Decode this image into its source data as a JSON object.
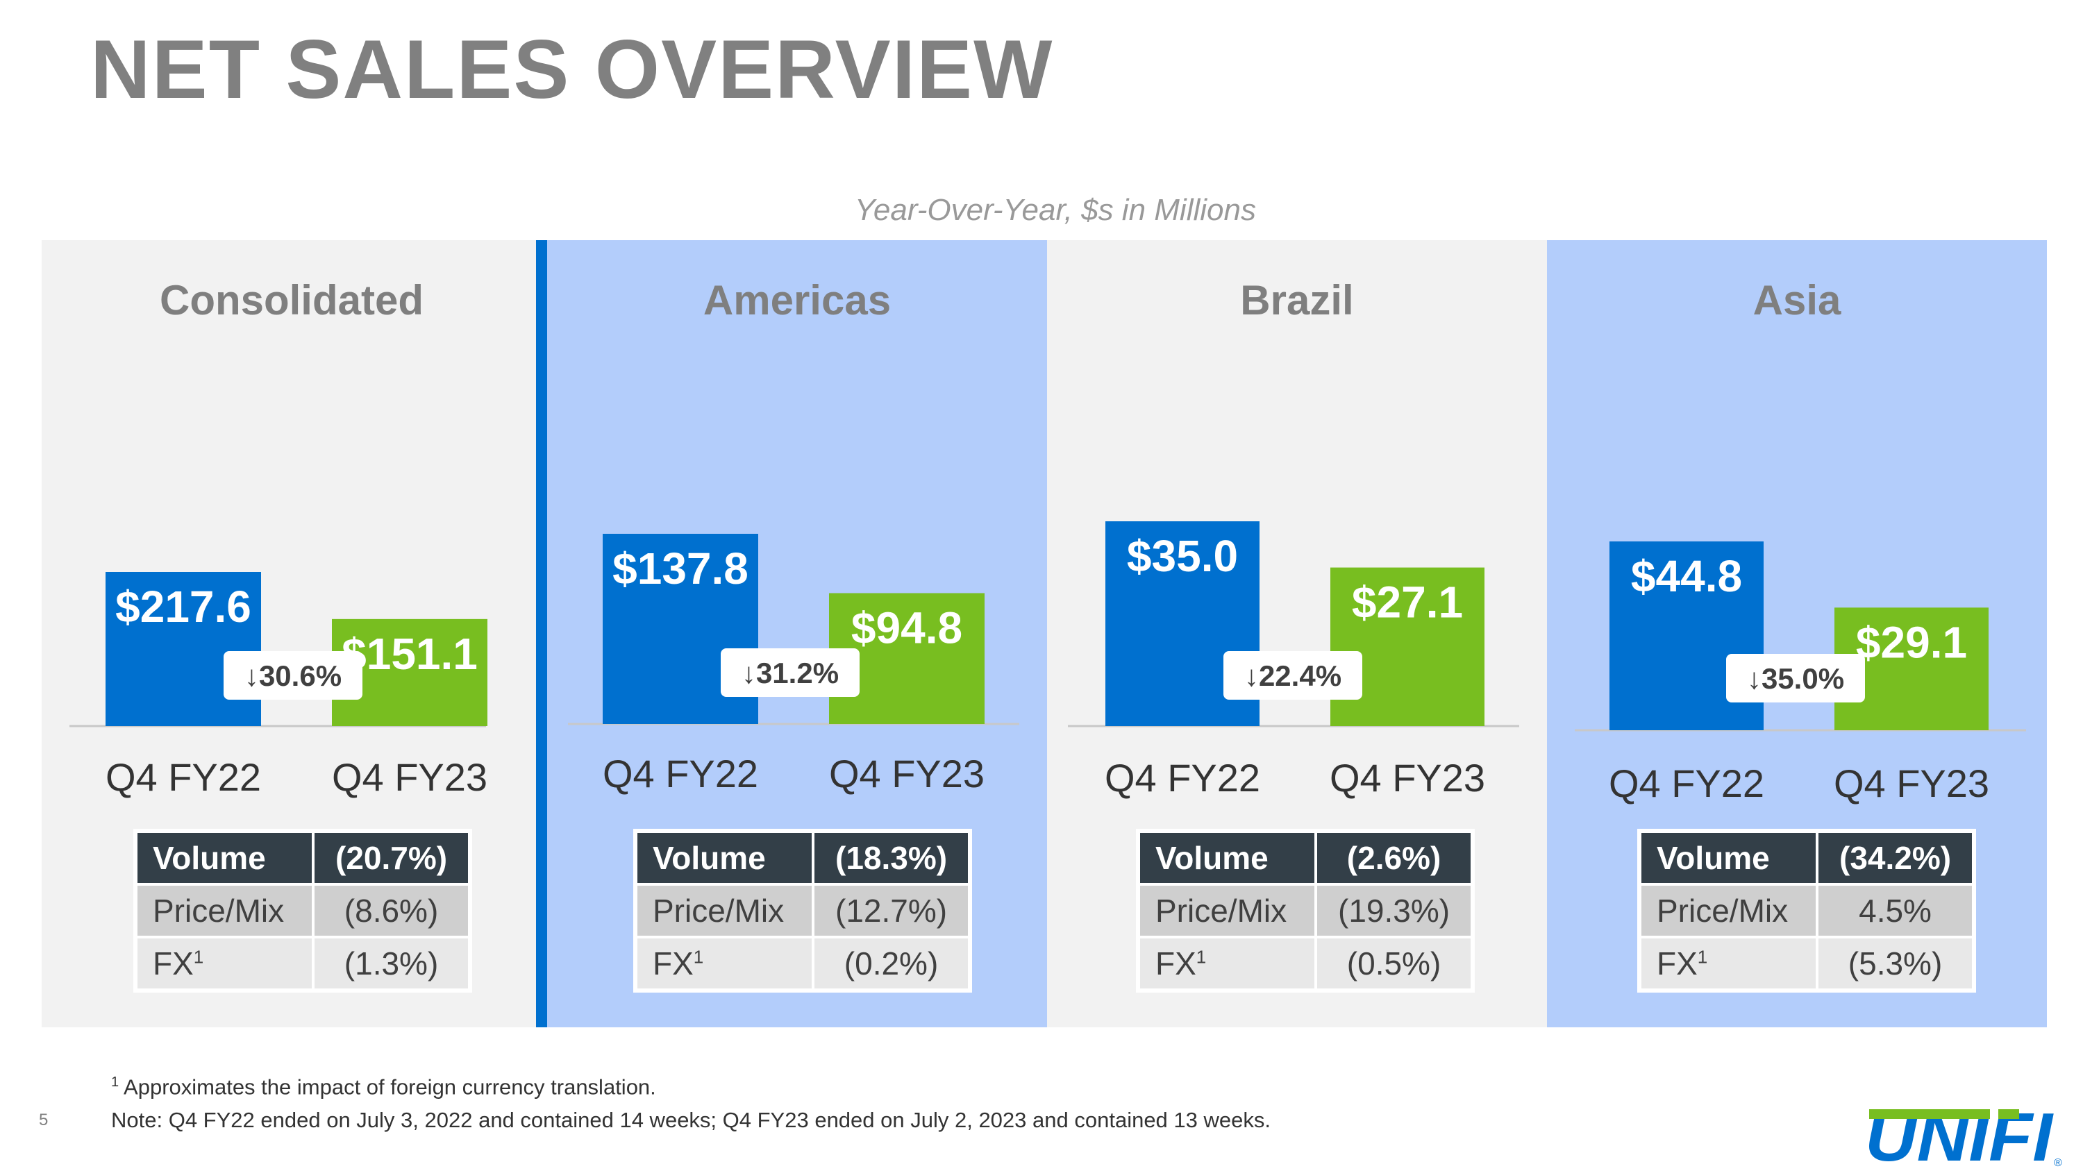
{
  "title": "NET SALES OVERVIEW",
  "subtitle": "Year-Over-Year, $s in Millions",
  "colors": {
    "q4fy22": "#0070cf",
    "q4fy23": "#78be20",
    "panel_gray": "#f2f2f2",
    "panel_blue": "#b3cdfb",
    "table_header": "#333f48"
  },
  "chart_data": [
    {
      "type": "bar",
      "title": "Consolidated",
      "categories": [
        "Q4 FY22",
        "Q4 FY23"
      ],
      "values": [
        217.6,
        151.1
      ],
      "value_labels": [
        "$217.6",
        "$151.1"
      ],
      "change_label": "↓30.6%",
      "ylim": [
        0,
        240
      ]
    },
    {
      "type": "bar",
      "title": "Americas",
      "categories": [
        "Q4 FY22",
        "Q4 FY23"
      ],
      "values": [
        137.8,
        94.8
      ],
      "value_labels": [
        "$137.8",
        "$94.8"
      ],
      "change_label": "↓31.2%",
      "ylim": [
        0,
        240
      ]
    },
    {
      "type": "bar",
      "title": "Brazil",
      "categories": [
        "Q4 FY22",
        "Q4 FY23"
      ],
      "values": [
        35.0,
        27.1
      ],
      "value_labels": [
        "$35.0",
        "$27.1"
      ],
      "change_label": "↓22.4%",
      "ylim": [
        0,
        70
      ]
    },
    {
      "type": "bar",
      "title": "Asia",
      "categories": [
        "Q4 FY22",
        "Q4 FY23"
      ],
      "values": [
        44.8,
        29.1
      ],
      "value_labels": [
        "$44.8",
        "$29.1"
      ],
      "change_label": "↓35.0%",
      "ylim": [
        0,
        90
      ]
    }
  ],
  "panels": [
    {
      "drivers": [
        {
          "label": "Volume",
          "value": "(20.7%)"
        },
        {
          "label": "Price/Mix",
          "value": "(8.6%)"
        },
        {
          "label": "FX",
          "sup": "1",
          "value": "(1.3%)"
        }
      ]
    },
    {
      "drivers": [
        {
          "label": "Volume",
          "value": "(18.3%)"
        },
        {
          "label": "Price/Mix",
          "value": "(12.7%)"
        },
        {
          "label": "FX",
          "sup": "1",
          "value": "(0.2%)"
        }
      ]
    },
    {
      "drivers": [
        {
          "label": "Volume",
          "value": "(2.6%)"
        },
        {
          "label": "Price/Mix",
          "value": "(19.3%)"
        },
        {
          "label": "FX",
          "sup": "1",
          "value": "(0.5%)"
        }
      ]
    },
    {
      "drivers": [
        {
          "label": "Volume",
          "value": "(34.2%)"
        },
        {
          "label": "Price/Mix",
          "value": "4.5%"
        },
        {
          "label": "FX",
          "sup": "1",
          "value": "(5.3%)"
        }
      ]
    }
  ],
  "footnotes": {
    "fx_sup": "1",
    "fx_note": "Approximates the impact of foreign currency translation.",
    "note": "Note: Q4 FY22 ended on July 3, 2022 and contained 14 weeks; Q4 FY23 ended on July 2, 2023 and contained 13 weeks."
  },
  "page_number": "5",
  "logo": {
    "text": "UNIFI",
    "registered": "®"
  }
}
